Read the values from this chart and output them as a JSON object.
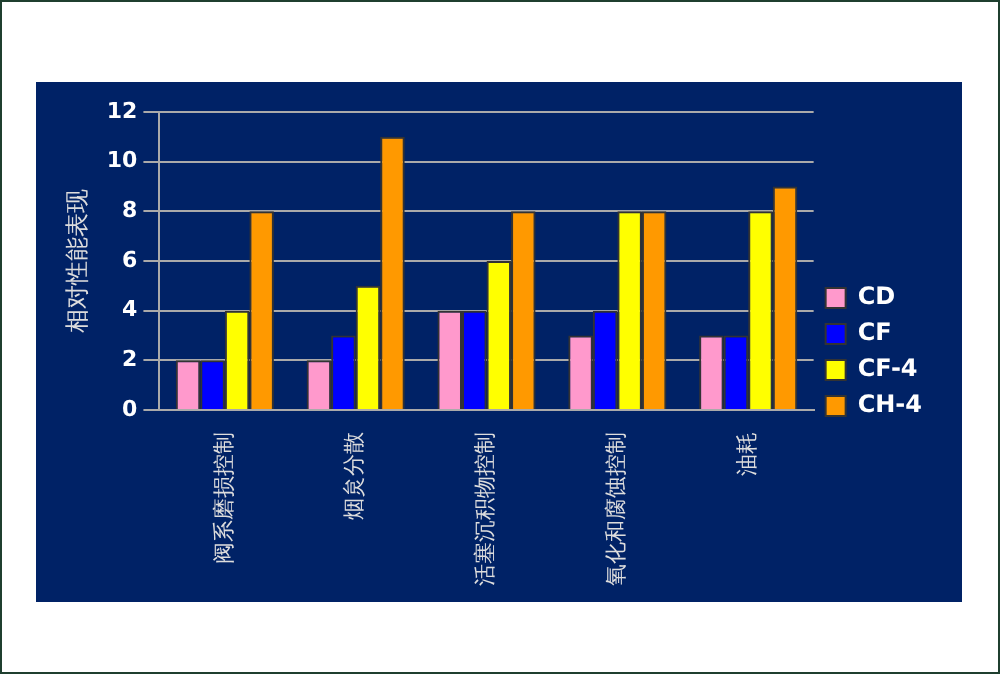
{
  "chart_data": {
    "type": "bar",
    "ylabel": "相对性能表现",
    "categories": [
      "阀系磨损控制",
      "烟炱分散",
      "活塞沉积物控制",
      "氧化和腐蚀控制",
      "油耗"
    ],
    "series": [
      {
        "name": "CD",
        "color": "#ff99cc",
        "values": [
          2,
          2,
          4,
          3,
          3
        ]
      },
      {
        "name": "CF",
        "color": "#0000ff",
        "values": [
          2,
          3,
          4,
          4,
          3
        ]
      },
      {
        "name": "CF-4",
        "color": "#ffff00",
        "values": [
          4,
          5,
          6,
          8,
          8
        ]
      },
      {
        "name": "CH-4",
        "color": "#ff9900",
        "values": [
          8,
          11,
          8,
          8,
          9
        ]
      }
    ],
    "ylim": [
      0,
      12
    ],
    "yticks": [
      0,
      2,
      4,
      6,
      8,
      10,
      12
    ],
    "grid": "y",
    "legend": "right"
  }
}
